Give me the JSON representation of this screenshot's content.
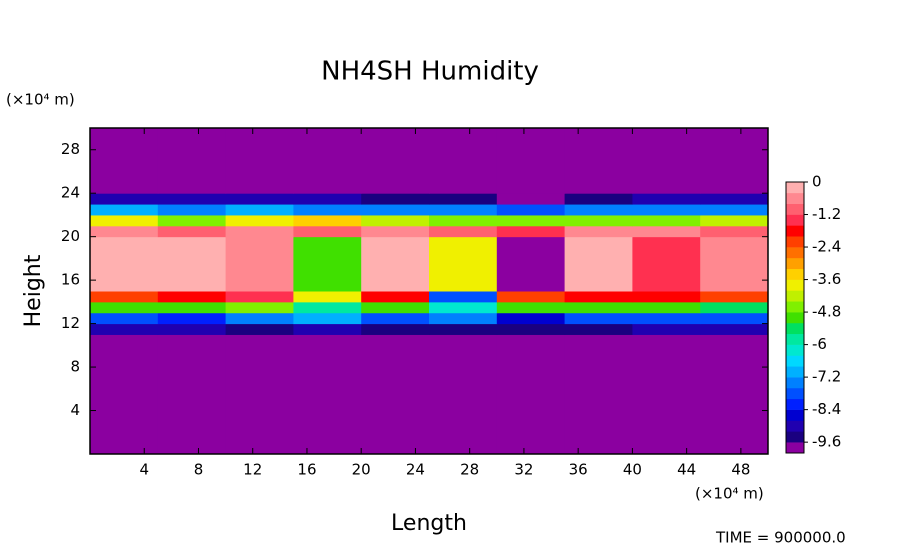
{
  "chart_data": {
    "type": "heatmap",
    "title": "NH4SH Humidity",
    "x_label": "Length",
    "y_label": "Height",
    "x_unit": "(×10⁴ m)",
    "y_unit": "(×10⁴ m)",
    "footer": "TIME = 900000.0",
    "xlim": [
      0,
      50
    ],
    "ylim": [
      0,
      30
    ],
    "xticks": [
      4,
      8,
      12,
      16,
      20,
      24,
      28,
      32,
      36,
      40,
      44,
      48
    ],
    "yticks": [
      4,
      8,
      12,
      16,
      20,
      24,
      28
    ],
    "xbins": [
      0,
      5,
      10,
      15,
      20,
      25,
      30,
      35,
      40,
      45,
      50
    ],
    "ybins": [
      0,
      11,
      12,
      13,
      14,
      15,
      20,
      21,
      22,
      23,
      24,
      30
    ],
    "z": [
      [
        -10,
        -10,
        -10,
        -10,
        -10,
        -10,
        -10,
        -10,
        -10,
        -10
      ],
      [
        -9.2,
        -9.2,
        -9.4,
        -9.2,
        -9.6,
        -9.4,
        -9.6,
        -9.4,
        -9.2,
        -9.2
      ],
      [
        -8,
        -8.2,
        -7.6,
        -7,
        -8,
        -7.2,
        -8.4,
        -8,
        -7.8,
        -8
      ],
      [
        -5.2,
        -5,
        -4.8,
        -6,
        -5,
        -6.4,
        -5,
        -5.2,
        -5,
        -5.4
      ],
      [
        -2.4,
        -2,
        -1.6,
        -4,
        -2,
        -8,
        -2.4,
        -1.8,
        -2,
        -2.2
      ],
      [
        -0.4,
        -0.2,
        -0.6,
        -5,
        -0.2,
        -4,
        -9.8,
        -0.4,
        -1.6,
        -0.6
      ],
      [
        -0.8,
        -1,
        -0.6,
        -1.2,
        -0.8,
        -1,
        -1.4,
        -0.8,
        -0.6,
        -1
      ],
      [
        -4,
        -4.4,
        -4,
        -3.6,
        -4.2,
        -4.6,
        -4.4,
        -4.8,
        -4.6,
        -4.2
      ],
      [
        -7,
        -7.2,
        -7,
        -7.4,
        -7.2,
        -7.6,
        -7.8,
        -7.6,
        -7.4,
        -7.2
      ],
      [
        -9,
        -9.2,
        -9,
        -9.2,
        -9.4,
        -9.6,
        -9.8,
        -9.6,
        -9.2,
        -9
      ],
      [
        -10,
        -10,
        -10,
        -10,
        -10,
        -10,
        -10,
        -10,
        -10,
        -10
      ]
    ],
    "levels": [
      -10,
      -9.6,
      -9.2,
      -8.8,
      -8.4,
      -8,
      -7.6,
      -7.2,
      -6.8,
      -6.4,
      -6,
      -5.6,
      -5.2,
      -4.8,
      -4.4,
      -4,
      -3.6,
      -3.2,
      -2.8,
      -2.4,
      -2,
      -1.6,
      -1.2,
      -0.8,
      -0.4,
      0
    ],
    "colors": [
      "#8b00a0",
      "#1a0080",
      "#2000b0",
      "#0000d0",
      "#0020ff",
      "#0050ff",
      "#0080ff",
      "#00b0ff",
      "#00d8ff",
      "#00e8d0",
      "#00e8a0",
      "#00e060",
      "#40e000",
      "#80f000",
      "#c0f000",
      "#f0f000",
      "#ffd000",
      "#ffa000",
      "#ff7000",
      "#ff4000",
      "#ff0000",
      "#ff3050",
      "#ff6070",
      "#ff8890",
      "#ffb0b0"
    ],
    "colorbar_ticks": [
      0,
      -1.2,
      -2.4,
      -3.6,
      -4.8,
      -6,
      -7.2,
      -8.4,
      -9.6
    ]
  }
}
